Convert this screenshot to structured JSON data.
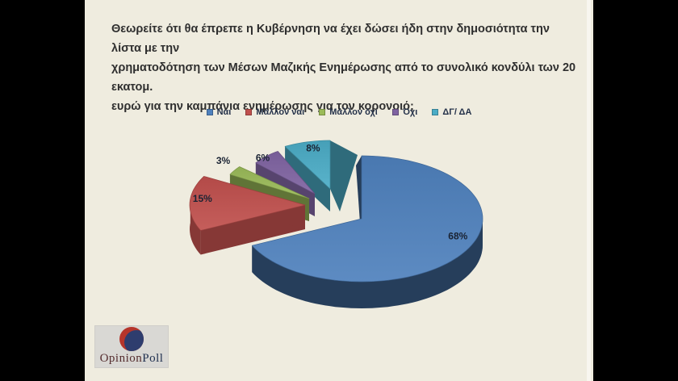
{
  "slide": {
    "bg": "#efecdf",
    "title_lines": [
      "Θεωρείτε ότι θα έπρεπε η Κυβέρνηση να έχει δώσει ήδη στην δημοσιότητα την λίστα με την",
      "χρηματοδότηση των Μέσων Μαζικής Ενημέρωσης από το συνολικό κονδύλι των 20 εκατομ.",
      "ευρώ για την καμπάνια ενημέρωσης για τον κορονοιό;"
    ],
    "title_color": "#2f2f2f"
  },
  "legend": {
    "items": [
      {
        "label": "Ναι",
        "color": "#4f81bd"
      },
      {
        "label": "Μάλλον ναι",
        "color": "#c0504d"
      },
      {
        "label": "Μάλλον όχι",
        "color": "#9bbb59"
      },
      {
        "label": "Όχι",
        "color": "#8064a2"
      },
      {
        "label": "ΔΓ/ ΔΑ",
        "color": "#4bacc6"
      }
    ]
  },
  "chart_data": {
    "type": "pie",
    "style": "3d-exploded",
    "title": "Θεωρείτε ότι θα έπρεπε η Κυβέρνηση να έχει δώσει ήδη στην δημοσιότητα την λίστα με την χρηματοδότηση των Μέσων Μαζικής Ενημέρωσης από το συνολικό κονδύλι των 20 εκατομ. ευρώ για την καμπάνια ενημέρωσης για τον κορονοιό;",
    "categories": [
      "Ναι",
      "Μάλλον ναι",
      "Μάλλον όχι",
      "Όχι",
      "ΔΓ/ ΔΑ"
    ],
    "values": [
      68,
      15,
      3,
      6,
      8
    ],
    "unit": "%",
    "data_labels": [
      "68%",
      "15%",
      "3%",
      "6%",
      "8%"
    ],
    "colors": [
      "#4f81bd",
      "#c0504d",
      "#9bbb59",
      "#8064a2",
      "#4bacc6"
    ],
    "legend_position": "top",
    "start_angle_deg": 0,
    "direction": "clockwise"
  },
  "logo": {
    "text_primary": "Opinion",
    "text_secondary": "Poll",
    "primary_color": "#542c2e",
    "secondary_color": "#20304f",
    "sphere_main": "#2e3d6e",
    "sphere_accent": "#b5352b",
    "box_bg": "#d9d8d4"
  }
}
